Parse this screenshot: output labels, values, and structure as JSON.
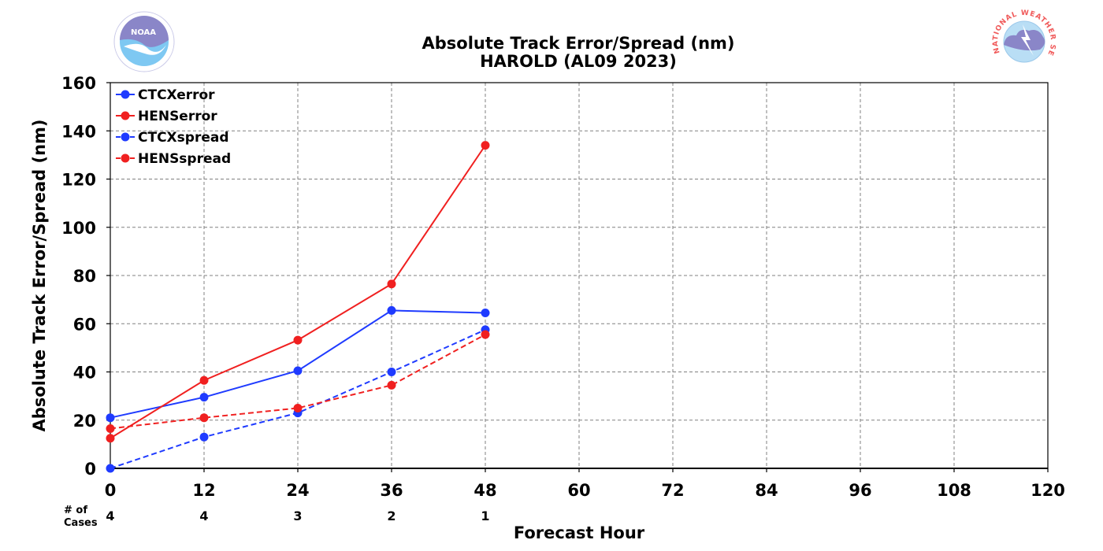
{
  "chart_data": {
    "type": "line",
    "title_line1": "Absolute Track Error/Spread (nm)",
    "title_line2": "HAROLD (AL09 2023)",
    "xlabel": "Forecast Hour",
    "ylabel": "Absolute Track Error/Spread (nm)",
    "xlim": [
      0,
      120
    ],
    "ylim": [
      0,
      160
    ],
    "xticks": [
      0,
      12,
      24,
      36,
      48,
      60,
      72,
      84,
      96,
      108,
      120
    ],
    "yticks": [
      0,
      20,
      40,
      60,
      80,
      100,
      120,
      140,
      160
    ],
    "grid": true,
    "legend_position": "top-left",
    "cases_label_line1": "# of",
    "cases_label_line2": "Cases",
    "cases": [
      {
        "x": 0,
        "n": "4"
      },
      {
        "x": 12,
        "n": "4"
      },
      {
        "x": 24,
        "n": "3"
      },
      {
        "x": 36,
        "n": "2"
      },
      {
        "x": 48,
        "n": "1"
      }
    ],
    "series": [
      {
        "name": "CTCXerror",
        "color": "#1f3bff",
        "dashed": false,
        "x": [
          0,
          12,
          24,
          36,
          48
        ],
        "y": [
          21,
          29.5,
          40.5,
          65.5,
          64.5
        ]
      },
      {
        "name": "HENSerror",
        "color": "#f02020",
        "dashed": false,
        "x": [
          0,
          12,
          24,
          36,
          48
        ],
        "y": [
          12.5,
          36.5,
          53.2,
          76.5,
          134
        ]
      },
      {
        "name": "CTCXspread",
        "color": "#1f3bff",
        "dashed": true,
        "x": [
          0,
          12,
          24,
          36,
          48
        ],
        "y": [
          0,
          13,
          23,
          40,
          57.5
        ]
      },
      {
        "name": "HENSspread",
        "color": "#f02020",
        "dashed": true,
        "x": [
          0,
          12,
          24,
          36,
          48
        ],
        "y": [
          16.5,
          21,
          25,
          34.5,
          55.5
        ]
      }
    ]
  },
  "logos": {
    "left_icon": "noaa-logo-icon",
    "left_text": "NOAA",
    "right_icon": "nws-logo-icon",
    "right_text": "NATIONAL WEATHER SERVICE"
  }
}
